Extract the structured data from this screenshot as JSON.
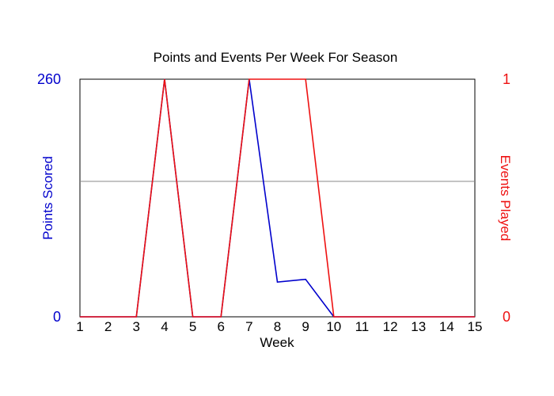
{
  "chart_data": {
    "type": "line",
    "title": "Points and Events Per Week For Season",
    "xlabel": "Week",
    "ylabel": "Points Scored",
    "y2label": "Events Played",
    "x": [
      1,
      2,
      3,
      4,
      5,
      6,
      7,
      8,
      9,
      10,
      11,
      12,
      13,
      14,
      15
    ],
    "xlim": [
      1,
      15
    ],
    "ylim": [
      0,
      260
    ],
    "y2lim": [
      0,
      1
    ],
    "yticks": [
      "0",
      "260"
    ],
    "y2ticks": [
      "0",
      "1"
    ],
    "grid": "single horizontal midline",
    "series": [
      {
        "axis": "left",
        "color": "#0000cc",
        "values": [
          0,
          0,
          0,
          260,
          0,
          0,
          260,
          38,
          41,
          0,
          0,
          0,
          0,
          0,
          0
        ]
      },
      {
        "axis": "right",
        "color": "#ee1111",
        "values": [
          0,
          0,
          0,
          1,
          0,
          0,
          1,
          1,
          1,
          0,
          0,
          0,
          0,
          0,
          0
        ]
      }
    ]
  }
}
